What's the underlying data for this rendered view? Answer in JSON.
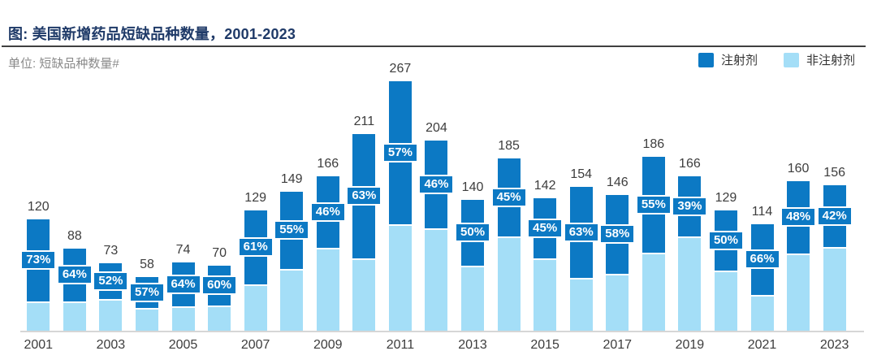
{
  "header": {
    "title": "图: 美国新增药品短缺品种数量，2001-2023",
    "unit": "单位: 短缺品种数量#"
  },
  "colors": {
    "injectable": "#0C79C4",
    "non_injectable": "#A4DEF7",
    "title_text": "#1F3A68",
    "axis_line": "#D6D6D6",
    "label_text": "#3d3d3d"
  },
  "chart_data": {
    "type": "bar",
    "stacked": true,
    "title": "美国新增药品短缺品种数量, 2001-2023",
    "ylabel": "短缺品种数量#",
    "categories": [
      2001,
      2002,
      2003,
      2004,
      2005,
      2006,
      2007,
      2008,
      2009,
      2010,
      2011,
      2012,
      2013,
      2014,
      2015,
      2016,
      2017,
      2018,
      2019,
      2020,
      2021,
      2022,
      2023
    ],
    "totals": [
      120,
      88,
      73,
      58,
      74,
      70,
      129,
      149,
      166,
      211,
      267,
      204,
      140,
      185,
      142,
      154,
      146,
      186,
      166,
      129,
      114,
      160,
      156
    ],
    "injectable_pct": [
      73,
      64,
      52,
      57,
      64,
      60,
      61,
      55,
      46,
      63,
      57,
      46,
      50,
      45,
      45,
      63,
      58,
      55,
      39,
      50,
      66,
      48,
      42
    ],
    "series": [
      {
        "name": "注射剂",
        "color": "#0C79C4",
        "position": "top"
      },
      {
        "name": "非注射剂",
        "color": "#A4DEF7",
        "position": "bottom"
      }
    ],
    "ylim": [
      0,
      280
    ],
    "x_tick_step": 2,
    "grid": false,
    "legend_position": "top-right"
  }
}
